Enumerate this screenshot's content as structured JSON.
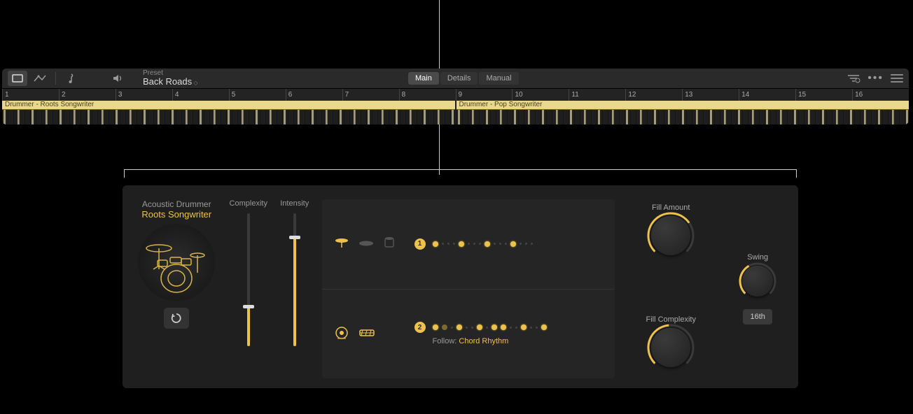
{
  "toolbar": {
    "preset_label": "Preset",
    "preset_name": "Back Roads",
    "tabs": {
      "main": "Main",
      "details": "Details",
      "manual": "Manual"
    }
  },
  "ruler": [
    "1",
    "2",
    "3",
    "4",
    "5",
    "6",
    "7",
    "8",
    "9",
    "10",
    "11",
    "12",
    "13",
    "14",
    "15",
    "16"
  ],
  "regions": {
    "a": "Drummer - Roots Songwriter",
    "b": "Drummer - Pop Songwriter"
  },
  "drummer": {
    "category": "Acoustic Drummer",
    "style": "Roots Songwriter"
  },
  "sliders": {
    "complexity": {
      "label": "Complexity",
      "pct": 30
    },
    "intensity": {
      "label": "Intensity",
      "pct": 82
    }
  },
  "pattern": {
    "row1_num": "1",
    "row2_num": "2",
    "follow_label": "Follow:",
    "follow_value": "Chord Rhythm",
    "row1_steps": [
      1,
      0,
      0,
      0,
      1,
      0,
      0,
      0,
      1,
      0,
      0,
      0,
      1,
      0,
      0,
      0
    ],
    "row2_steps": [
      1,
      2,
      0,
      1,
      0,
      0,
      1,
      0,
      1,
      1,
      0,
      0,
      1,
      0,
      0,
      1
    ]
  },
  "knobs": {
    "fill_amount": {
      "label": "Fill Amount",
      "angle": -35
    },
    "fill_complexity": {
      "label": "Fill Complexity",
      "angle": -95
    },
    "swing": {
      "label": "Swing",
      "angle": -120
    },
    "swing_mode": "16th"
  },
  "colors": {
    "accent": "#eec24a",
    "bg": "#1e1e1e",
    "panel": "#252525"
  }
}
